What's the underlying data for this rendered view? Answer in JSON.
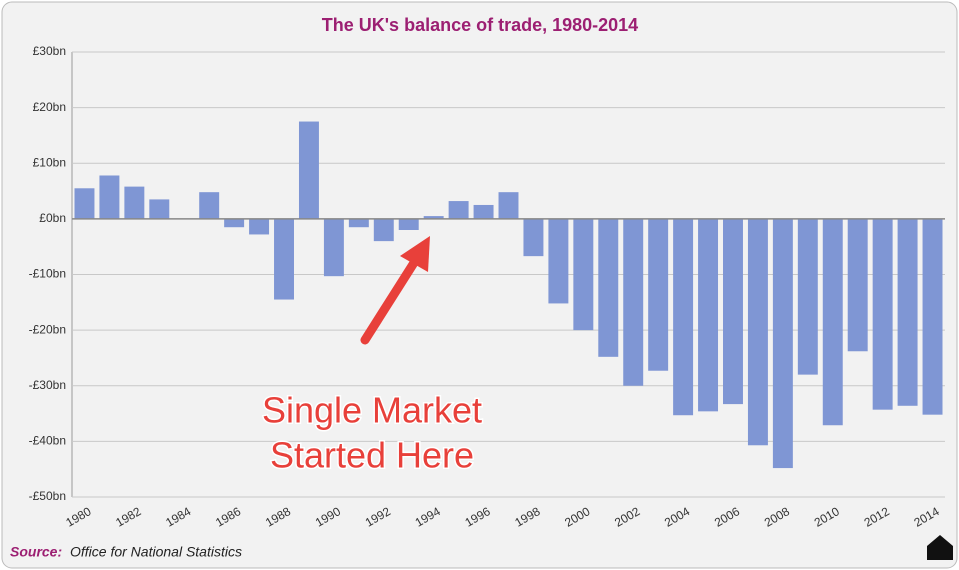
{
  "chart_data": {
    "type": "bar",
    "title": "The UK's balance of trade, 1980-2014",
    "categories": [
      "1980",
      null,
      "1982",
      null,
      "1984",
      null,
      "1986",
      null,
      "1988",
      null,
      "1990",
      null,
      "1992",
      null,
      "1994",
      null,
      "1996",
      null,
      "1998",
      null,
      "2000",
      null,
      "2002",
      null,
      "2004",
      null,
      "2006",
      null,
      "2008",
      null,
      "2010",
      null,
      "2012",
      null,
      "2014"
    ],
    "values": [
      5.5,
      7.8,
      5.8,
      3.5,
      0,
      4.8,
      -1.5,
      -2.8,
      -14.5,
      17.5,
      -10.3,
      -1.5,
      -4,
      -2,
      0.5,
      3.2,
      2.5,
      4.8,
      -6.7,
      -15.2,
      -20,
      -24.8,
      -30,
      -27.3,
      -35.3,
      -34.6,
      -33.3,
      -40.7,
      -44.8,
      -28,
      -37.1,
      -23.8,
      -34.3,
      -33.6,
      -35.2
    ],
    "color": "#7f96d4",
    "ylim": [
      -50,
      30
    ],
    "yticks": [
      {
        "value": -50,
        "label": "-£50bn"
      },
      {
        "value": -40,
        "label": "-£40bn"
      },
      {
        "value": -30,
        "label": "-£30bn"
      },
      {
        "value": -20,
        "label": "-£20bn"
      },
      {
        "value": -10,
        "label": "-£10bn"
      },
      {
        "value": 0,
        "label": "£0bn"
      },
      {
        "value": 10,
        "label": "£10bn"
      },
      {
        "value": 20,
        "label": "£20bn"
      },
      {
        "value": 30,
        "label": "£30bn"
      }
    ],
    "grid": true,
    "annotation": [
      "Single Market",
      "Started Here"
    ],
    "source_label": "Source:",
    "source": "Office for National Statistics"
  }
}
